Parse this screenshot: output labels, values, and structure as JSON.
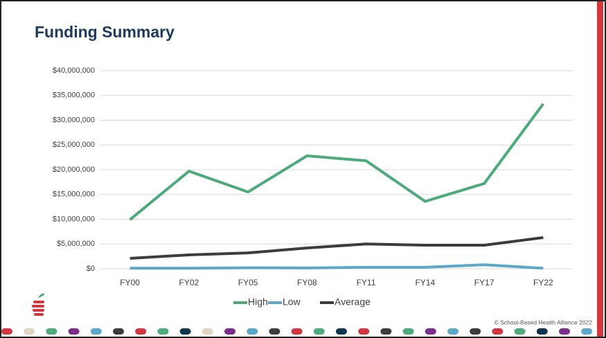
{
  "chart_data": {
    "type": "line",
    "title": "Funding Summary",
    "categories": [
      "FY00",
      "FY02",
      "FY05",
      "FY08",
      "FY11",
      "FY14",
      "FY17",
      "FY22"
    ],
    "series": [
      {
        "name": "High",
        "color": "#4daa7a",
        "values": [
          9900000,
          19700000,
          15500000,
          22800000,
          21800000,
          13600000,
          17200000,
          33300000
        ]
      },
      {
        "name": "Low",
        "color": "#5ba8c8",
        "values": [
          100000,
          100000,
          200000,
          150000,
          300000,
          300000,
          800000,
          100000
        ]
      },
      {
        "name": "Average",
        "color": "#3c3c3e",
        "values": [
          2100000,
          2800000,
          3200000,
          4200000,
          5000000,
          4750000,
          4750000,
          6300000
        ]
      }
    ],
    "ylim": [
      0,
      40000000
    ],
    "yticks": [
      {
        "value": 0,
        "label": "$0"
      },
      {
        "value": 5000000,
        "label": "$5,000,000"
      },
      {
        "value": 10000000,
        "label": "$10,000,000"
      },
      {
        "value": 15000000,
        "label": "$15,000,000"
      },
      {
        "value": 20000000,
        "label": "$20,000,000"
      },
      {
        "value": 25000000,
        "label": "$25,000,000"
      },
      {
        "value": 30000000,
        "label": "$30,000,000"
      },
      {
        "value": 35000000,
        "label": "$35,000,000"
      },
      {
        "value": 40000000,
        "label": "$40,000,000"
      }
    ],
    "grid": true,
    "legend": "bottom",
    "footer": "© School-Based Health Alliance 2022"
  }
}
